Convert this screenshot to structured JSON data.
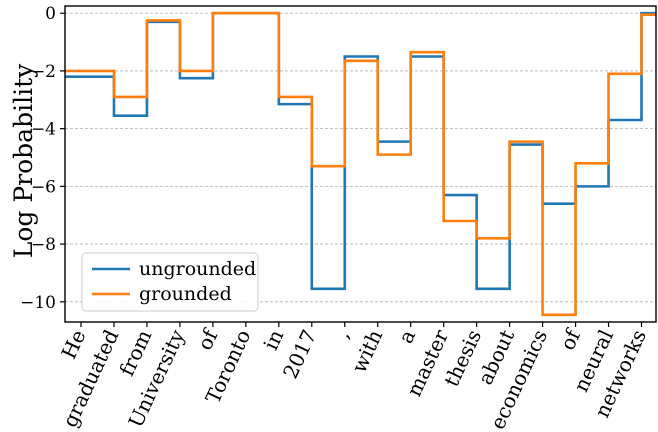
{
  "chart_data": {
    "type": "line",
    "ylabel": "Log Probability",
    "xlabel": "",
    "title": "",
    "categories": [
      "He",
      "graduated",
      "from",
      "University",
      "of",
      "Toronto",
      "in",
      "2017",
      ",",
      "with",
      "a",
      "master",
      "thesis",
      "about",
      "economics",
      "of",
      "neural",
      "networks"
    ],
    "series": [
      {
        "name": "ungrounded",
        "color": "#1f77b4",
        "values": [
          -2.2,
          -3.55,
          -0.3,
          -2.25,
          0.0,
          0.0,
          -3.15,
          -9.55,
          -1.5,
          -4.45,
          -1.5,
          -6.3,
          -9.55,
          -4.55,
          -6.6,
          -6.0,
          -3.7,
          0.0
        ]
      },
      {
        "name": "grounded",
        "color": "#ff7f0e",
        "values": [
          -2.0,
          -2.9,
          -0.25,
          -2.0,
          0.0,
          0.0,
          -2.9,
          -5.3,
          -1.65,
          -4.9,
          -1.35,
          -7.2,
          -7.8,
          -4.45,
          -10.45,
          -5.2,
          -2.1,
          -0.05
        ]
      }
    ],
    "ylim": [
      -10.7,
      0.25
    ],
    "yticks": [
      0,
      -2,
      -4,
      -6,
      -8,
      -10
    ],
    "ytick_labels": [
      "0",
      "−2",
      "−4",
      "−6",
      "−8",
      "−10"
    ],
    "grid": "horizontal dashed",
    "step": "post",
    "legend_position": "lower-left"
  }
}
